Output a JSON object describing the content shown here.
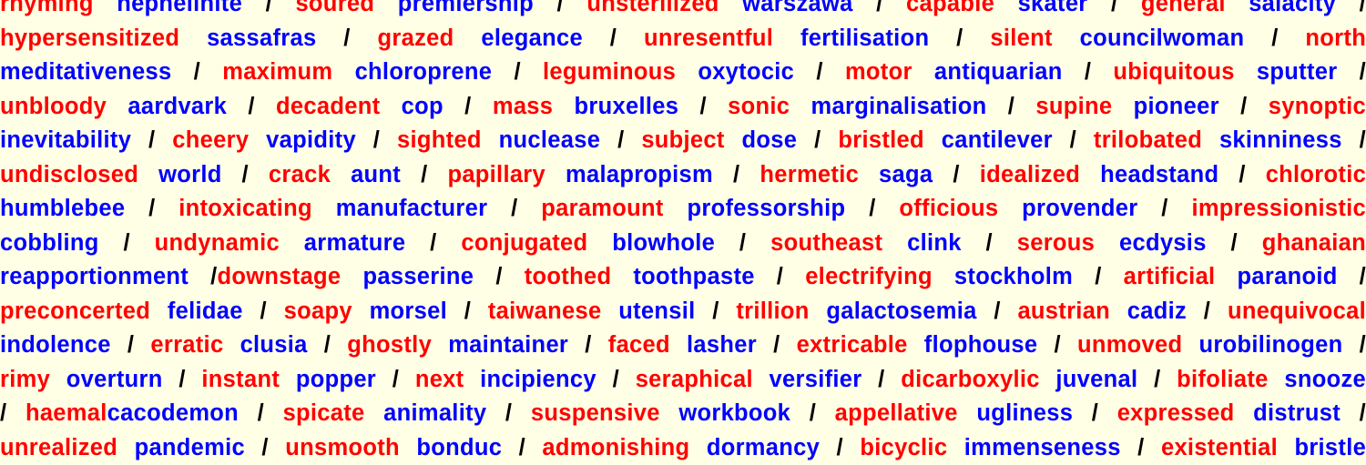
{
  "colors": {
    "background": "#ffffe5",
    "adjective": "#ff0000",
    "noun": "#0000ff",
    "separator": "#000000"
  },
  "lines": [
    [
      [
        "t",
        "rhyming"
      ],
      [
        "s",
        " "
      ],
      [
        "n",
        "nephelinite"
      ],
      [
        "p",
        " / "
      ],
      [
        "t",
        "soured"
      ],
      [
        "s",
        " "
      ],
      [
        "n",
        "premiership"
      ],
      [
        "p",
        " / "
      ],
      [
        "t",
        "unsterilized"
      ],
      [
        "s",
        " "
      ],
      [
        "n",
        "warszawa"
      ],
      [
        "p",
        " / "
      ],
      [
        "t",
        "capable"
      ],
      [
        "s",
        " "
      ],
      [
        "n",
        "skater"
      ],
      [
        "p",
        " / "
      ],
      [
        "t",
        "general"
      ],
      [
        "s",
        " "
      ],
      [
        "n",
        "salacity"
      ],
      [
        "p",
        " /"
      ]
    ],
    [
      [
        "t",
        "hypersensitized"
      ],
      [
        "s",
        " "
      ],
      [
        "n",
        "sassafras"
      ],
      [
        "p",
        " / "
      ],
      [
        "t",
        "grazed"
      ],
      [
        "s",
        " "
      ],
      [
        "n",
        "elegance"
      ],
      [
        "p",
        " / "
      ],
      [
        "t",
        "unresentful"
      ],
      [
        "s",
        " "
      ],
      [
        "n",
        "fertilisation"
      ],
      [
        "p",
        " / "
      ],
      [
        "t",
        "silent"
      ],
      [
        "s",
        " "
      ],
      [
        "n",
        "councilwoman"
      ],
      [
        "p",
        " / "
      ],
      [
        "t",
        "north"
      ]
    ],
    [
      [
        "n",
        "meditativeness"
      ],
      [
        "p",
        " / "
      ],
      [
        "t",
        "maximum"
      ],
      [
        "s",
        " "
      ],
      [
        "n",
        "chloroprene"
      ],
      [
        "p",
        " / "
      ],
      [
        "t",
        "leguminous"
      ],
      [
        "s",
        " "
      ],
      [
        "n",
        "oxytocic"
      ],
      [
        "p",
        " / "
      ],
      [
        "t",
        "motor"
      ],
      [
        "s",
        " "
      ],
      [
        "n",
        "antiquarian"
      ],
      [
        "p",
        " / "
      ],
      [
        "t",
        "ubiquitous"
      ],
      [
        "s",
        " "
      ],
      [
        "n",
        "sputter"
      ],
      [
        "p",
        " /"
      ]
    ],
    [
      [
        "t",
        "unbloody"
      ],
      [
        "s",
        " "
      ],
      [
        "n",
        "aardvark"
      ],
      [
        "p",
        " / "
      ],
      [
        "t",
        "decadent"
      ],
      [
        "s",
        " "
      ],
      [
        "n",
        "cop"
      ],
      [
        "p",
        " / "
      ],
      [
        "t",
        "mass"
      ],
      [
        "s",
        " "
      ],
      [
        "n",
        "bruxelles"
      ],
      [
        "p",
        " / "
      ],
      [
        "t",
        "sonic"
      ],
      [
        "s",
        " "
      ],
      [
        "n",
        "marginalisation"
      ],
      [
        "p",
        " / "
      ],
      [
        "t",
        "supine"
      ],
      [
        "s",
        " "
      ],
      [
        "n",
        "pioneer"
      ],
      [
        "p",
        " / "
      ],
      [
        "t",
        "synoptic"
      ]
    ],
    [
      [
        "n",
        "inevitability"
      ],
      [
        "p",
        " / "
      ],
      [
        "t",
        "cheery"
      ],
      [
        "s",
        " "
      ],
      [
        "n",
        "vapidity"
      ],
      [
        "p",
        " / "
      ],
      [
        "t",
        "sighted"
      ],
      [
        "s",
        " "
      ],
      [
        "n",
        "nuclease"
      ],
      [
        "p",
        " / "
      ],
      [
        "t",
        "subject"
      ],
      [
        "s",
        " "
      ],
      [
        "n",
        "dose"
      ],
      [
        "p",
        " / "
      ],
      [
        "t",
        "bristled"
      ],
      [
        "s",
        " "
      ],
      [
        "n",
        "cantilever"
      ],
      [
        "p",
        " / "
      ],
      [
        "t",
        "trilobated"
      ],
      [
        "s",
        " "
      ],
      [
        "n",
        "skinniness"
      ],
      [
        "p",
        " /"
      ]
    ],
    [
      [
        "t",
        "undisclosed"
      ],
      [
        "s",
        " "
      ],
      [
        "n",
        "world"
      ],
      [
        "p",
        " / "
      ],
      [
        "t",
        "crack"
      ],
      [
        "s",
        " "
      ],
      [
        "n",
        "aunt"
      ],
      [
        "p",
        " / "
      ],
      [
        "t",
        "papillary"
      ],
      [
        "s",
        " "
      ],
      [
        "n",
        "malapropism"
      ],
      [
        "p",
        " / "
      ],
      [
        "t",
        "hermetic"
      ],
      [
        "s",
        " "
      ],
      [
        "n",
        "saga"
      ],
      [
        "p",
        " / "
      ],
      [
        "t",
        "idealized"
      ],
      [
        "s",
        " "
      ],
      [
        "n",
        "headstand"
      ],
      [
        "p",
        " / "
      ],
      [
        "t",
        "chlorotic"
      ]
    ],
    [
      [
        "n",
        "humblebee"
      ],
      [
        "p",
        " / "
      ],
      [
        "t",
        "intoxicating"
      ],
      [
        "s",
        " "
      ],
      [
        "n",
        "manufacturer"
      ],
      [
        "p",
        " / "
      ],
      [
        "t",
        "paramount"
      ],
      [
        "s",
        " "
      ],
      [
        "n",
        "professorship"
      ],
      [
        "p",
        " / "
      ],
      [
        "t",
        "officious"
      ],
      [
        "s",
        " "
      ],
      [
        "n",
        "provender"
      ],
      [
        "p",
        " / "
      ],
      [
        "t",
        "impressionistic"
      ]
    ],
    [
      [
        "n",
        "cobbling"
      ],
      [
        "p",
        " / "
      ],
      [
        "t",
        "undynamic"
      ],
      [
        "s",
        " "
      ],
      [
        "n",
        "armature"
      ],
      [
        "p",
        " / "
      ],
      [
        "t",
        "conjugated"
      ],
      [
        "s",
        " "
      ],
      [
        "n",
        "blowhole"
      ],
      [
        "p",
        " / "
      ],
      [
        "t",
        "southeast"
      ],
      [
        "s",
        " "
      ],
      [
        "n",
        "clink"
      ],
      [
        "p",
        " / "
      ],
      [
        "t",
        "serous"
      ],
      [
        "s",
        " "
      ],
      [
        "n",
        "ecdysis"
      ],
      [
        "p",
        " / "
      ],
      [
        "t",
        "ghanaian"
      ]
    ],
    [
      [
        "n",
        "reapportionment"
      ],
      [
        "p",
        " /"
      ],
      [
        "t",
        "downstage"
      ],
      [
        "s",
        " "
      ],
      [
        "n",
        "passerine"
      ],
      [
        "p",
        " / "
      ],
      [
        "t",
        "toothed"
      ],
      [
        "s",
        " "
      ],
      [
        "n",
        "toothpaste"
      ],
      [
        "p",
        " / "
      ],
      [
        "t",
        "electrifying"
      ],
      [
        "s",
        " "
      ],
      [
        "n",
        "stockholm"
      ],
      [
        "p",
        " / "
      ],
      [
        "t",
        "artificial"
      ],
      [
        "s",
        " "
      ],
      [
        "n",
        "paranoid"
      ],
      [
        "p",
        " /"
      ]
    ],
    [
      [
        "t",
        "preconcerted"
      ],
      [
        "s",
        " "
      ],
      [
        "n",
        "felidae"
      ],
      [
        "p",
        " / "
      ],
      [
        "t",
        "soapy"
      ],
      [
        "s",
        " "
      ],
      [
        "n",
        "morsel"
      ],
      [
        "p",
        " / "
      ],
      [
        "t",
        "taiwanese"
      ],
      [
        "s",
        " "
      ],
      [
        "n",
        "utensil"
      ],
      [
        "p",
        " / "
      ],
      [
        "t",
        "trillion"
      ],
      [
        "s",
        " "
      ],
      [
        "n",
        "galactosemia"
      ],
      [
        "p",
        " / "
      ],
      [
        "t",
        "austrian"
      ],
      [
        "s",
        " "
      ],
      [
        "n",
        "cadiz"
      ],
      [
        "p",
        " / "
      ],
      [
        "t",
        "unequivocal"
      ]
    ],
    [
      [
        "n",
        "indolence"
      ],
      [
        "p",
        " / "
      ],
      [
        "t",
        "erratic"
      ],
      [
        "s",
        " "
      ],
      [
        "n",
        "clusia"
      ],
      [
        "p",
        " / "
      ],
      [
        "t",
        "ghostly"
      ],
      [
        "s",
        " "
      ],
      [
        "n",
        "maintainer"
      ],
      [
        "p",
        " / "
      ],
      [
        "t",
        "faced"
      ],
      [
        "s",
        " "
      ],
      [
        "n",
        "lasher"
      ],
      [
        "p",
        " / "
      ],
      [
        "t",
        "extricable"
      ],
      [
        "s",
        " "
      ],
      [
        "n",
        "flophouse"
      ],
      [
        "p",
        " / "
      ],
      [
        "t",
        "unmoved"
      ],
      [
        "s",
        " "
      ],
      [
        "n",
        "urobilinogen"
      ],
      [
        "p",
        " /"
      ]
    ],
    [
      [
        "t",
        "rimy"
      ],
      [
        "s",
        " "
      ],
      [
        "n",
        "overturn"
      ],
      [
        "p",
        " / "
      ],
      [
        "t",
        "instant"
      ],
      [
        "s",
        " "
      ],
      [
        "n",
        "popper"
      ],
      [
        "p",
        " / "
      ],
      [
        "t",
        "next"
      ],
      [
        "s",
        " "
      ],
      [
        "n",
        "incipiency"
      ],
      [
        "p",
        " / "
      ],
      [
        "t",
        "seraphical"
      ],
      [
        "s",
        " "
      ],
      [
        "n",
        "versifier"
      ],
      [
        "p",
        " / "
      ],
      [
        "t",
        "dicarboxylic"
      ],
      [
        "s",
        " "
      ],
      [
        "n",
        "juvenal"
      ],
      [
        "p",
        " / "
      ],
      [
        "t",
        "bifoliate"
      ],
      [
        "s",
        " "
      ],
      [
        "n",
        "snooze"
      ]
    ],
    [
      [
        "p",
        "/ "
      ],
      [
        "t",
        "haemal"
      ],
      [
        "n",
        "cacodemon"
      ],
      [
        "p",
        " / "
      ],
      [
        "t",
        "spicate"
      ],
      [
        "s",
        " "
      ],
      [
        "n",
        "animality"
      ],
      [
        "p",
        " / "
      ],
      [
        "t",
        "suspensive"
      ],
      [
        "s",
        " "
      ],
      [
        "n",
        "workbook"
      ],
      [
        "p",
        " / "
      ],
      [
        "t",
        "appellative"
      ],
      [
        "s",
        " "
      ],
      [
        "n",
        "ugliness"
      ],
      [
        "p",
        " / "
      ],
      [
        "t",
        "expressed"
      ],
      [
        "s",
        " "
      ],
      [
        "n",
        "distrust"
      ],
      [
        "p",
        " /"
      ]
    ],
    [
      [
        "t",
        "unrealized"
      ],
      [
        "s",
        " "
      ],
      [
        "n",
        "pandemic"
      ],
      [
        "p",
        " / "
      ],
      [
        "t",
        "unsmooth"
      ],
      [
        "s",
        " "
      ],
      [
        "n",
        "bonduc"
      ],
      [
        "p",
        " / "
      ],
      [
        "t",
        "admonishing"
      ],
      [
        "s",
        " "
      ],
      [
        "n",
        "dormancy"
      ],
      [
        "p",
        " / "
      ],
      [
        "t",
        "bicyclic"
      ],
      [
        "s",
        " "
      ],
      [
        "n",
        "immenseness"
      ],
      [
        "p",
        " / "
      ],
      [
        "t",
        "existential"
      ],
      [
        "s",
        " "
      ],
      [
        "n",
        "bristle"
      ]
    ]
  ]
}
